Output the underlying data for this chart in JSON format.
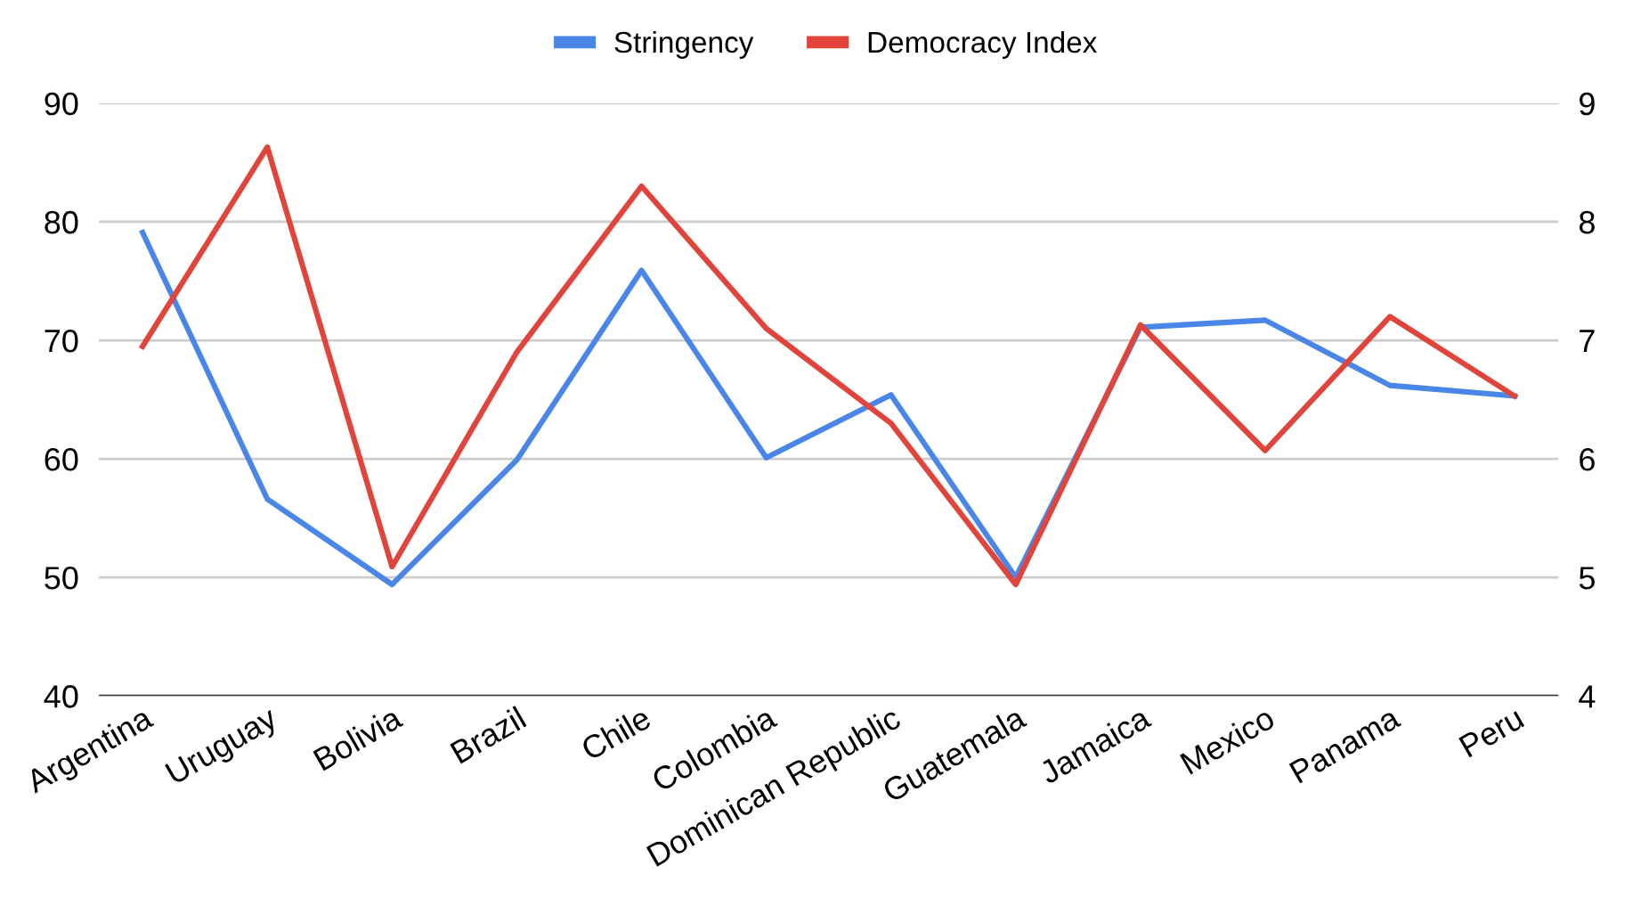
{
  "chart_data": {
    "type": "line",
    "categories": [
      "Argentina",
      "Uruguay",
      "Bolivia",
      "Brazil",
      "Chile",
      "Colombia",
      "Dominican Republic",
      "Guatemala",
      "Jamaica",
      "Mexico",
      "Panama",
      "Peru"
    ],
    "series": [
      {
        "name": "Stringency",
        "color": "#4a86e8",
        "values": [
          79.1,
          56.6,
          49.4,
          59.9,
          75.9,
          60.1,
          65.4,
          50.0,
          71.1,
          71.7,
          66.2,
          65.3
        ]
      },
      {
        "name": "Democracy Index",
        "color": "#e0443a",
        "axis": "y2",
        "values": [
          6.95,
          8.63,
          5.09,
          6.9,
          8.3,
          7.1,
          6.3,
          4.94,
          7.13,
          6.07,
          7.2,
          6.53
        ]
      }
    ],
    "ylim": [
      40,
      90
    ],
    "yticks": [
      40,
      50,
      60,
      70,
      80,
      90
    ],
    "y2lim": [
      4,
      9
    ],
    "y2ticks": [
      4,
      5,
      6,
      7,
      8,
      9
    ],
    "grid": "y",
    "legend": "top",
    "marker": "none",
    "line_style": "solid"
  }
}
